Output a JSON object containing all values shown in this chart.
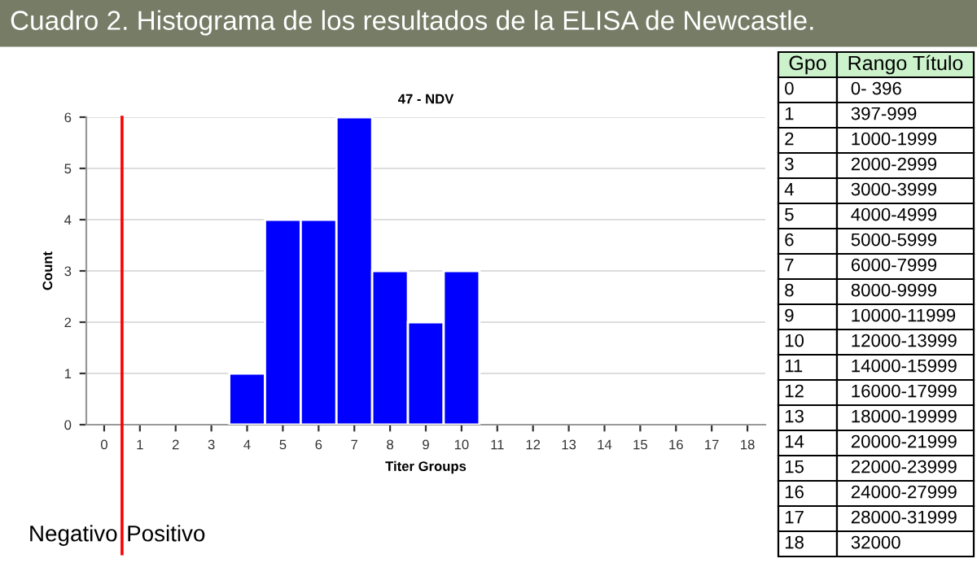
{
  "chart_data": {
    "type": "histogram",
    "title": "Cuadro 2. Histograma de los resultados de la ELISA de Newcastle.",
    "subtitle": "47 - NDV",
    "xlabel": "Titer Groups",
    "ylabel": "Count",
    "bins": [
      3.5,
      4.5,
      5.5,
      6.5,
      7.5,
      8.5,
      9.5,
      10.5
    ],
    "values": [
      1,
      4,
      4,
      6,
      3,
      2,
      3
    ],
    "color": "#0000ff",
    "xlim": [
      -0.5,
      18.5
    ],
    "xticks": [
      0,
      1,
      2,
      3,
      4,
      5,
      6,
      7,
      8,
      9,
      10,
      11,
      12,
      13,
      14,
      15,
      16,
      17,
      18
    ],
    "ylim": [
      0,
      6
    ],
    "yticks": [
      0,
      1,
      2,
      3,
      4,
      5,
      6
    ],
    "grid": "y",
    "ref_lines": [
      {
        "axis": "x",
        "value": 0.5,
        "color": "#ff0000"
      }
    ],
    "annotations": [
      "Negativo",
      "Positivo",
      "Gpo",
      "Rango Título",
      "0",
      "0- 396",
      "1",
      "397-999",
      "2",
      "1000-1999",
      "3",
      "2000-2999",
      "4",
      "3000-3999",
      "5",
      "4000-4999",
      "6",
      "5000-5999",
      "7",
      "6000-7999",
      "8",
      "8000-9999",
      "9",
      "10000-11999",
      "10",
      "12000-13999",
      "11",
      "14000-15999",
      "12",
      "16000-17999",
      "13",
      "18000-19999",
      "14",
      "20000-21999",
      "15",
      "22000-23999",
      "16",
      "24000-27999",
      "17",
      "28000-31999",
      "18",
      "32000"
    ]
  }
}
